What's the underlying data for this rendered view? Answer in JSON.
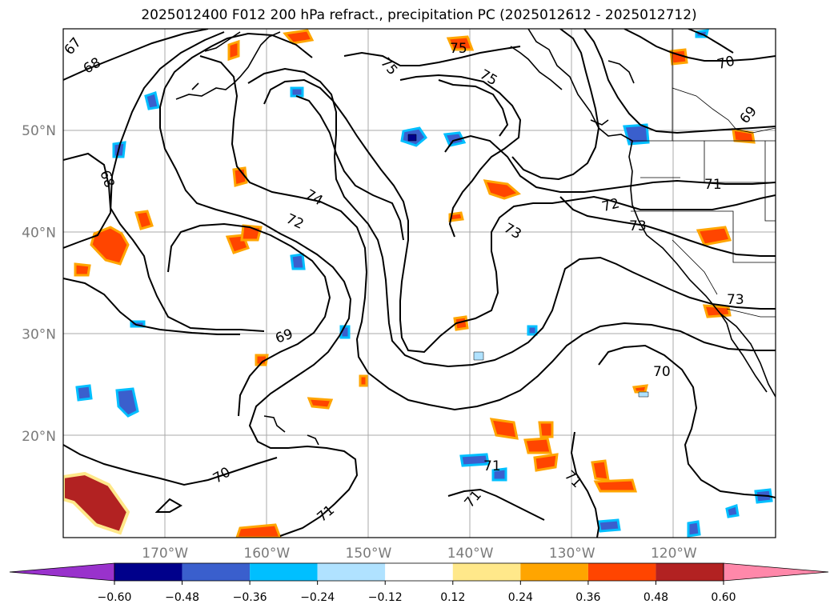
{
  "title": "2025012400 F012 200 hPa refract., precipitation PC (2025012612 - 2025012712)",
  "latitude_labels": [
    {
      "deg": 50,
      "label": "50°N"
    },
    {
      "deg": 40,
      "label": "40°N"
    },
    {
      "deg": 30,
      "label": "30°N"
    },
    {
      "deg": 20,
      "label": "20°N"
    }
  ],
  "longitude_labels": [
    {
      "deg": -170,
      "label": "170°W"
    },
    {
      "deg": -160,
      "label": "160°W"
    },
    {
      "deg": -150,
      "label": "150°W"
    },
    {
      "deg": -140,
      "label": "140°W"
    },
    {
      "deg": -130,
      "label": "130°W"
    },
    {
      "deg": -120,
      "label": "120°W"
    }
  ],
  "colorbar": {
    "ticks": [
      "−0.60",
      "−0.48",
      "−0.36",
      "−0.24",
      "−0.12",
      "0.12",
      "0.24",
      "0.36",
      "0.48",
      "0.60"
    ],
    "colors": [
      "#9932cc",
      "#00008b",
      "#3a5fcd",
      "#00bfff",
      "#b0e2ff",
      "#ffffff",
      "#ffe88a",
      "#ffa500",
      "#ff4500",
      "#b22222",
      "#ff88aa"
    ]
  },
  "contour_labels": [
    "67",
    "68",
    "68",
    "75",
    "75",
    "75",
    "70",
    "69",
    "74",
    "72",
    "73",
    "72",
    "71",
    "73",
    "73",
    "69",
    "70",
    "70",
    "71",
    "71",
    "71",
    "71"
  ]
}
